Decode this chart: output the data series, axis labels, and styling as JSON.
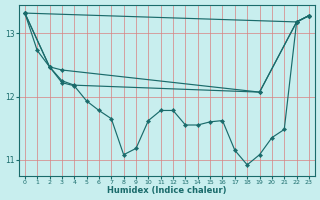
{
  "xlabel": "Humidex (Indice chaleur)",
  "bg_color": "#c8eeee",
  "line_color": "#1a6b6b",
  "grid_color": "#d98080",
  "xlim": [
    -0.5,
    23.5
  ],
  "ylim": [
    10.75,
    13.45
  ],
  "yticks": [
    11,
    12,
    13
  ],
  "xticks": [
    0,
    1,
    2,
    3,
    4,
    5,
    6,
    7,
    8,
    9,
    10,
    11,
    12,
    13,
    14,
    15,
    16,
    17,
    18,
    19,
    20,
    21,
    22,
    23
  ],
  "lines": [
    {
      "x": [
        0,
        22,
        23
      ],
      "y": [
        13.32,
        13.18,
        13.28
      ]
    },
    {
      "x": [
        0,
        2,
        3,
        19,
        22,
        23
      ],
      "y": [
        13.32,
        12.47,
        12.42,
        12.07,
        13.18,
        13.28
      ]
    },
    {
      "x": [
        0,
        2,
        3,
        4,
        19,
        22,
        23
      ],
      "y": [
        13.32,
        12.47,
        12.25,
        12.18,
        12.07,
        13.18,
        13.28
      ]
    },
    {
      "x": [
        0,
        1,
        2,
        3,
        4,
        5,
        6,
        7,
        8,
        9,
        10,
        11,
        12,
        13,
        14,
        15,
        16,
        17,
        18,
        19,
        20,
        21,
        22,
        23
      ],
      "y": [
        13.32,
        12.73,
        12.47,
        12.22,
        12.17,
        11.93,
        11.78,
        11.65,
        11.08,
        11.18,
        11.62,
        11.78,
        11.78,
        11.55,
        11.55,
        11.6,
        11.62,
        11.15,
        10.92,
        11.08,
        11.35,
        11.48,
        13.18,
        13.28
      ]
    }
  ]
}
